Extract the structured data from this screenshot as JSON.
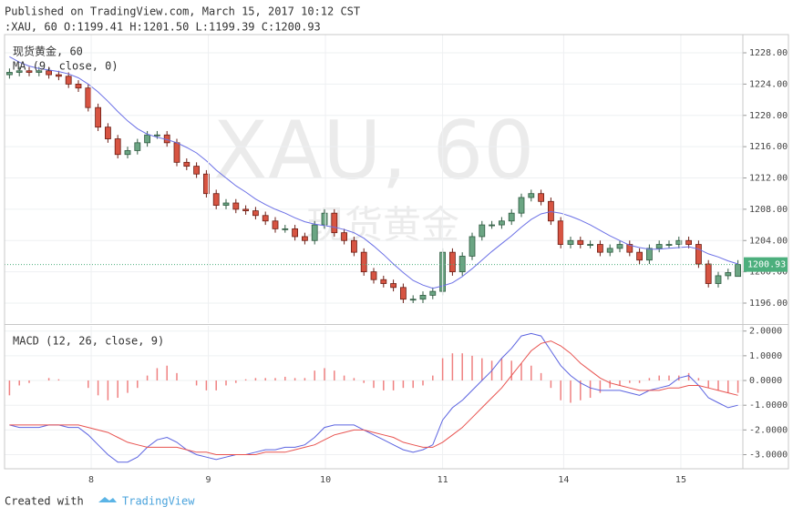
{
  "header": {
    "published": "Published on TradingView.com, March 15, 2017 10:12 CST",
    "ohlc_line": ":XAU, 60 O:1199.41 H:1201.50 L:1199.39 C:1200.93"
  },
  "chart_data": [
    {
      "type": "candlestick",
      "title": "现货黄金, 60",
      "watermark": "XAU, 60",
      "watermark_sub": "现货黄金",
      "up_color": "#6ba583",
      "down_color": "#d75442",
      "open": [
        1225.2,
        1225.5,
        1225.7,
        1225.5,
        1225.7,
        1225.2,
        1225.0,
        1224.0,
        1223.5,
        1221.0,
        1218.5,
        1217.0,
        1215.0,
        1215.5,
        1216.5,
        1217.5,
        1217.5,
        1216.5,
        1214.0,
        1213.5,
        1212.5,
        1210.0,
        1208.5,
        1208.8,
        1208.0,
        1207.8,
        1207.2,
        1206.5,
        1205.5,
        1205.5,
        1204.5,
        1204.0,
        1206.0,
        1207.5,
        1205.0,
        1204.0,
        1202.5,
        1200.0,
        1199.0,
        1198.5,
        1198.0,
        1196.5,
        1196.5,
        1197.0,
        1197.5,
        1202.5,
        1200.0,
        1202.0,
        1204.5,
        1206.0,
        1206.0,
        1206.5,
        1207.5,
        1209.5,
        1210.0,
        1209.0,
        1206.5,
        1203.5,
        1204.0,
        1203.5,
        1203.5,
        1202.5,
        1203.0,
        1203.5,
        1202.5,
        1201.5,
        1203.0,
        1203.5,
        1203.5,
        1204.0,
        1203.5,
        1201.0,
        1198.5,
        1199.5,
        1199.41
      ],
      "high": [
        1226.0,
        1226.2,
        1226.2,
        1226.2,
        1226.2,
        1225.7,
        1225.5,
        1224.5,
        1224.0,
        1221.5,
        1219.0,
        1217.5,
        1216.0,
        1217.0,
        1218.0,
        1218.0,
        1218.0,
        1217.0,
        1214.5,
        1214.0,
        1213.0,
        1210.5,
        1209.3,
        1209.3,
        1208.5,
        1208.3,
        1207.7,
        1207.0,
        1206.0,
        1206.0,
        1205.0,
        1206.5,
        1208.0,
        1208.0,
        1205.5,
        1204.5,
        1203.0,
        1200.5,
        1199.5,
        1199.0,
        1198.5,
        1197.0,
        1197.5,
        1198.0,
        1203.0,
        1203.0,
        1202.5,
        1205.0,
        1206.5,
        1206.5,
        1207.0,
        1208.0,
        1210.0,
        1210.5,
        1210.5,
        1209.5,
        1207.0,
        1204.5,
        1204.5,
        1204.0,
        1204.0,
        1203.5,
        1204.0,
        1204.0,
        1203.0,
        1203.5,
        1204.0,
        1204.0,
        1204.5,
        1204.5,
        1204.0,
        1201.5,
        1200.0,
        1200.4,
        1201.5
      ],
      "low": [
        1224.7,
        1225.0,
        1225.0,
        1225.0,
        1224.7,
        1224.5,
        1223.5,
        1223.0,
        1220.5,
        1218.0,
        1216.5,
        1214.5,
        1214.5,
        1215.0,
        1216.0,
        1217.0,
        1216.0,
        1213.5,
        1213.0,
        1212.0,
        1209.5,
        1208.0,
        1208.0,
        1207.5,
        1207.3,
        1206.7,
        1206.0,
        1205.0,
        1205.0,
        1204.0,
        1203.5,
        1203.5,
        1205.5,
        1204.5,
        1203.5,
        1202.0,
        1199.5,
        1198.5,
        1198.0,
        1197.5,
        1196.0,
        1196.0,
        1196.0,
        1196.5,
        1197.0,
        1199.5,
        1199.5,
        1201.5,
        1204.0,
        1205.5,
        1205.5,
        1206.0,
        1207.0,
        1209.0,
        1208.5,
        1206.0,
        1203.0,
        1203.0,
        1203.0,
        1203.0,
        1202.0,
        1202.0,
        1202.5,
        1202.0,
        1201.0,
        1201.0,
        1202.5,
        1203.0,
        1203.0,
        1203.0,
        1200.5,
        1198.0,
        1198.0,
        1199.0,
        1199.39
      ],
      "close": [
        1225.5,
        1225.7,
        1225.5,
        1225.7,
        1225.2,
        1225.0,
        1224.0,
        1223.5,
        1221.0,
        1218.5,
        1217.0,
        1215.0,
        1215.5,
        1216.5,
        1217.5,
        1217.5,
        1216.5,
        1214.0,
        1213.5,
        1212.5,
        1210.0,
        1208.5,
        1208.8,
        1208.0,
        1207.8,
        1207.2,
        1206.5,
        1205.5,
        1205.5,
        1204.5,
        1204.0,
        1206.0,
        1207.5,
        1205.0,
        1204.0,
        1202.5,
        1200.0,
        1199.0,
        1198.5,
        1198.0,
        1196.5,
        1196.5,
        1197.0,
        1197.5,
        1202.5,
        1200.0,
        1202.0,
        1204.5,
        1206.0,
        1206.0,
        1206.5,
        1207.5,
        1209.5,
        1210.0,
        1209.0,
        1206.5,
        1203.5,
        1204.0,
        1203.5,
        1203.5,
        1202.5,
        1203.0,
        1203.5,
        1202.5,
        1201.5,
        1203.0,
        1203.5,
        1203.5,
        1204.0,
        1203.5,
        1201.0,
        1198.5,
        1199.5,
        1199.9,
        1200.93
      ],
      "series": [
        {
          "name": "MA (9, close, 0)",
          "color": "#6b70e6",
          "values": [
            1227.5,
            1226.8,
            1226.3,
            1226.0,
            1225.8,
            1225.6,
            1225.3,
            1224.8,
            1224.0,
            1223.0,
            1221.8,
            1220.5,
            1219.3,
            1218.3,
            1217.6,
            1217.2,
            1216.9,
            1216.5,
            1215.9,
            1215.2,
            1214.2,
            1213.0,
            1212.0,
            1211.0,
            1210.2,
            1209.3,
            1208.6,
            1208.0,
            1207.5,
            1206.9,
            1206.4,
            1206.1,
            1205.9,
            1205.7,
            1205.4,
            1205.0,
            1204.3,
            1203.3,
            1202.2,
            1201.0,
            1199.9,
            1198.9,
            1198.3,
            1197.9,
            1198.2,
            1198.6,
            1199.4,
            1200.4,
            1201.5,
            1202.6,
            1203.6,
            1204.6,
            1205.7,
            1206.7,
            1207.4,
            1207.7,
            1207.5,
            1207.1,
            1206.6,
            1206.0,
            1205.3,
            1204.6,
            1204.0,
            1203.4,
            1203.1,
            1202.9,
            1202.9,
            1203.0,
            1203.1,
            1203.2,
            1202.9,
            1202.3,
            1201.9,
            1201.4,
            1201.0
          ]
        }
      ],
      "last_price": 1200.93,
      "last_price_color": "#4caf7d",
      "ylim": [
        1193.44,
        1230.33
      ],
      "yticks": [
        {
          "value": 1196,
          "label": "1196.00"
        },
        {
          "value": 1200,
          "label": "1200.00"
        },
        {
          "value": 1204,
          "label": "1204.00"
        },
        {
          "value": 1208,
          "label": "1208.00"
        },
        {
          "value": 1212,
          "label": "1212.00"
        },
        {
          "value": 1216,
          "label": "1216.00"
        },
        {
          "value": 1220,
          "label": "1220.00"
        },
        {
          "value": 1224,
          "label": "1224.00"
        },
        {
          "value": 1228,
          "label": "1228.00"
        }
      ],
      "grid": true
    },
    {
      "type": "macd",
      "title": "MACD (12, 26, close, 9)",
      "series": [
        {
          "color": "#5b63e0",
          "values": [
            -1.8,
            -1.9,
            -1.9,
            -1.9,
            -1.8,
            -1.8,
            -1.9,
            -1.9,
            -2.2,
            -2.6,
            -3.0,
            -3.3,
            -3.3,
            -3.1,
            -2.7,
            -2.4,
            -2.3,
            -2.5,
            -2.8,
            -3.0,
            -3.1,
            -3.2,
            -3.1,
            -3.0,
            -3.0,
            -2.9,
            -2.8,
            -2.8,
            -2.7,
            -2.7,
            -2.6,
            -2.3,
            -1.9,
            -1.8,
            -1.8,
            -1.8,
            -2.0,
            -2.2,
            -2.4,
            -2.6,
            -2.8,
            -2.9,
            -2.8,
            -2.6,
            -1.6,
            -1.1,
            -0.8,
            -0.4,
            0.0,
            0.4,
            0.9,
            1.3,
            1.8,
            1.9,
            1.8,
            1.2,
            0.6,
            0.2,
            -0.1,
            -0.3,
            -0.4,
            -0.4,
            -0.4,
            -0.5,
            -0.6,
            -0.4,
            -0.3,
            -0.2,
            0.1,
            0.2,
            -0.2,
            -0.7,
            -0.9,
            -1.1,
            -1.0
          ]
        },
        {
          "color": "#e8524f",
          "values": [
            -1.8,
            -1.8,
            -1.8,
            -1.8,
            -1.8,
            -1.8,
            -1.8,
            -1.8,
            -1.9,
            -2.0,
            -2.1,
            -2.3,
            -2.5,
            -2.6,
            -2.7,
            -2.7,
            -2.7,
            -2.7,
            -2.8,
            -2.9,
            -2.9,
            -3.0,
            -3.0,
            -3.0,
            -3.0,
            -3.0,
            -2.9,
            -2.9,
            -2.9,
            -2.8,
            -2.7,
            -2.6,
            -2.4,
            -2.2,
            -2.1,
            -2.0,
            -2.0,
            -2.1,
            -2.2,
            -2.3,
            -2.5,
            -2.6,
            -2.7,
            -2.7,
            -2.5,
            -2.2,
            -1.9,
            -1.5,
            -1.1,
            -0.7,
            -0.3,
            0.2,
            0.7,
            1.2,
            1.5,
            1.6,
            1.4,
            1.1,
            0.7,
            0.4,
            0.1,
            -0.1,
            -0.2,
            -0.3,
            -0.4,
            -0.4,
            -0.4,
            -0.3,
            -0.3,
            -0.2,
            -0.2,
            -0.3,
            -0.4,
            -0.5,
            -0.6
          ]
        }
      ],
      "histogram": {
        "color": "#ef8080",
        "values": [
          -0.6,
          -0.2,
          -0.1,
          0,
          0.1,
          0.05,
          0,
          0,
          -0.3,
          -0.6,
          -0.8,
          -0.7,
          -0.5,
          -0.3,
          0.2,
          0.5,
          0.6,
          0.3,
          0,
          -0.2,
          -0.4,
          -0.4,
          -0.2,
          -0.1,
          0.05,
          0.1,
          0.1,
          0.1,
          0.15,
          0.1,
          0.1,
          0.4,
          0.5,
          0.4,
          0.2,
          0.1,
          -0.1,
          -0.3,
          -0.4,
          -0.4,
          -0.3,
          -0.3,
          -0.2,
          0.2,
          0.9,
          1.1,
          1.1,
          1.0,
          0.9,
          0.8,
          0.9,
          0.8,
          0.7,
          0.6,
          0.3,
          -0.3,
          -0.8,
          -0.9,
          -0.8,
          -0.7,
          -0.5,
          -0.3,
          -0.2,
          -0.1,
          -0.1,
          0.1,
          0.2,
          0.2,
          0.2,
          0.3,
          0.1,
          -0.3,
          -0.4,
          -0.5,
          -0.5
        ]
      },
      "ylim": [
        -3.57,
        2.21
      ],
      "yticks": [
        {
          "value": 2,
          "label": "2.0000"
        },
        {
          "value": 1,
          "label": "1.0000"
        },
        {
          "value": 0,
          "label": "0.0000"
        },
        {
          "value": -1,
          "label": "-1.0000"
        },
        {
          "value": -2,
          "label": "-2.0000"
        },
        {
          "value": -3,
          "label": "-3.0000"
        }
      ],
      "xticks": [
        {
          "value": 8.3,
          "label": "8"
        },
        {
          "value": 20.2,
          "label": "9"
        },
        {
          "value": 32.1,
          "label": "10"
        },
        {
          "value": 44.0,
          "label": "11"
        },
        {
          "value": 56.3,
          "label": "14"
        },
        {
          "value": 68.2,
          "label": "15"
        }
      ],
      "grid": true
    }
  ],
  "footer": {
    "created_with": "Created with",
    "brand": "TradingView"
  }
}
